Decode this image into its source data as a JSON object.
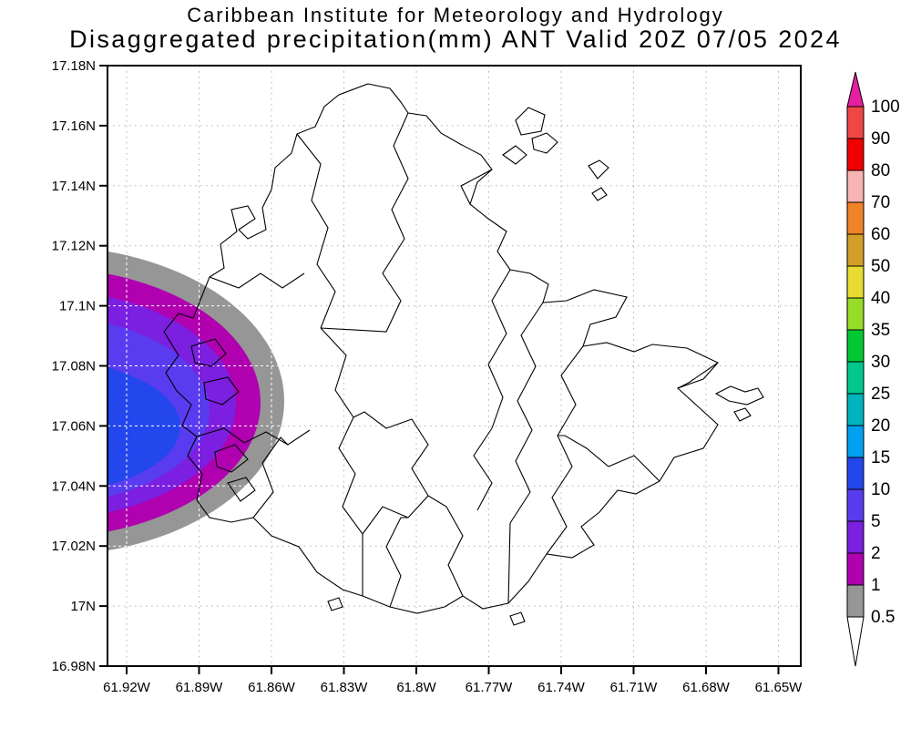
{
  "header": {
    "line1": "Caribbean Institute for Meteorology and Hydrology",
    "line2": "Disaggregated precipitation(mm) ANT Valid 20Z 07/05 2024"
  },
  "axes": {
    "lat_ticks": [
      "17.18N",
      "17.16N",
      "17.14N",
      "17.12N",
      "17.1N",
      "17.08N",
      "17.06N",
      "17.04N",
      "17.02N",
      "17N",
      "16.98N"
    ],
    "lon_ticks": [
      "61.92W",
      "61.89W",
      "61.86W",
      "61.83W",
      "61.8W",
      "61.77W",
      "61.74W",
      "61.71W",
      "61.68W",
      "61.65W"
    ]
  },
  "colorbar": {
    "boundary_labels": [
      "100",
      "90",
      "80",
      "70",
      "60",
      "50",
      "40",
      "35",
      "30",
      "25",
      "20",
      "15",
      "10",
      "5",
      "2",
      "1",
      "0.5"
    ],
    "cell_colors_top_to_bottom": [
      "#f04646",
      "#f00000",
      "#f8b4b4",
      "#f08228",
      "#d2a028",
      "#e6dc32",
      "#96dc28",
      "#00c832",
      "#00c88c",
      "#00b4be",
      "#00a0f0",
      "#2347ec",
      "#5a3cf0",
      "#7b1fe0",
      "#b000b0",
      "#969696"
    ],
    "over_arrow_color": "#e61ea0",
    "under_arrow_color": "#ffffff"
  },
  "chart_data": {
    "type": "heatmap",
    "title": "Caribbean Institute for Meteorology and Hydrology",
    "subtitle": "Disaggregated precipitation(mm) ANT Valid 20Z 07/05 2024",
    "region": "ANT",
    "valid_time": "20Z 07/05 2024",
    "units": "mm",
    "x_tick_labels": [
      "61.92W",
      "61.89W",
      "61.86W",
      "61.83W",
      "61.8W",
      "61.77W",
      "61.74W",
      "61.71W",
      "61.68W",
      "61.65W"
    ],
    "y_tick_labels": [
      "17.18N",
      "17.16N",
      "17.14N",
      "17.12N",
      "17.1N",
      "17.08N",
      "17.06N",
      "17.04N",
      "17.02N",
      "17N",
      "16.98N"
    ],
    "grid": "dotted",
    "legend_position": "right colorbar",
    "colorbar_levels_low_to_high": [
      0.5,
      1,
      2,
      5,
      10,
      15,
      20,
      25,
      30,
      35,
      40,
      50,
      60,
      70,
      80,
      90,
      100
    ],
    "colorbar_colors_low_to_high": [
      "#969696",
      "#b000b0",
      "#7b1fe0",
      "#5a3cf0",
      "#2347ec",
      "#00a0f0",
      "#00b4be",
      "#00c88c",
      "#00c832",
      "#96dc28",
      "#e6dc32",
      "#d2a028",
      "#f08228",
      "#f8b4b4",
      "#f00000",
      "#f04646"
    ],
    "over_color": "#e61ea0",
    "under_color": "#ffffff",
    "contour_rings": [
      {
        "level_mm": 0.5,
        "color": "#969696",
        "east_extent_lon": "61.85W",
        "lat_span": [
          "17.02N",
          "17.12N"
        ]
      },
      {
        "level_mm": 1,
        "color": "#b000b0",
        "east_extent_lon": "61.87W",
        "lat_span": [
          "17.03N",
          "17.11N"
        ]
      },
      {
        "level_mm": 2,
        "color": "#7b1fe0",
        "east_extent_lon": "61.87W",
        "lat_span": [
          "17.03N",
          "17.10N"
        ]
      },
      {
        "level_mm": 5,
        "color": "#5a3cf0",
        "east_extent_lon": "61.89W",
        "lat_span": [
          "17.04N",
          "17.09N"
        ]
      },
      {
        "level_mm": 10,
        "color": "#2347ec",
        "east_extent_lon": "61.90W",
        "lat_span": [
          "17.04N",
          "17.08N"
        ]
      }
    ],
    "feature_summary": "Precipitation maximum of 10-15 mm centered near 17.06N at the western map edge, decreasing eastward; most of the island dry"
  }
}
